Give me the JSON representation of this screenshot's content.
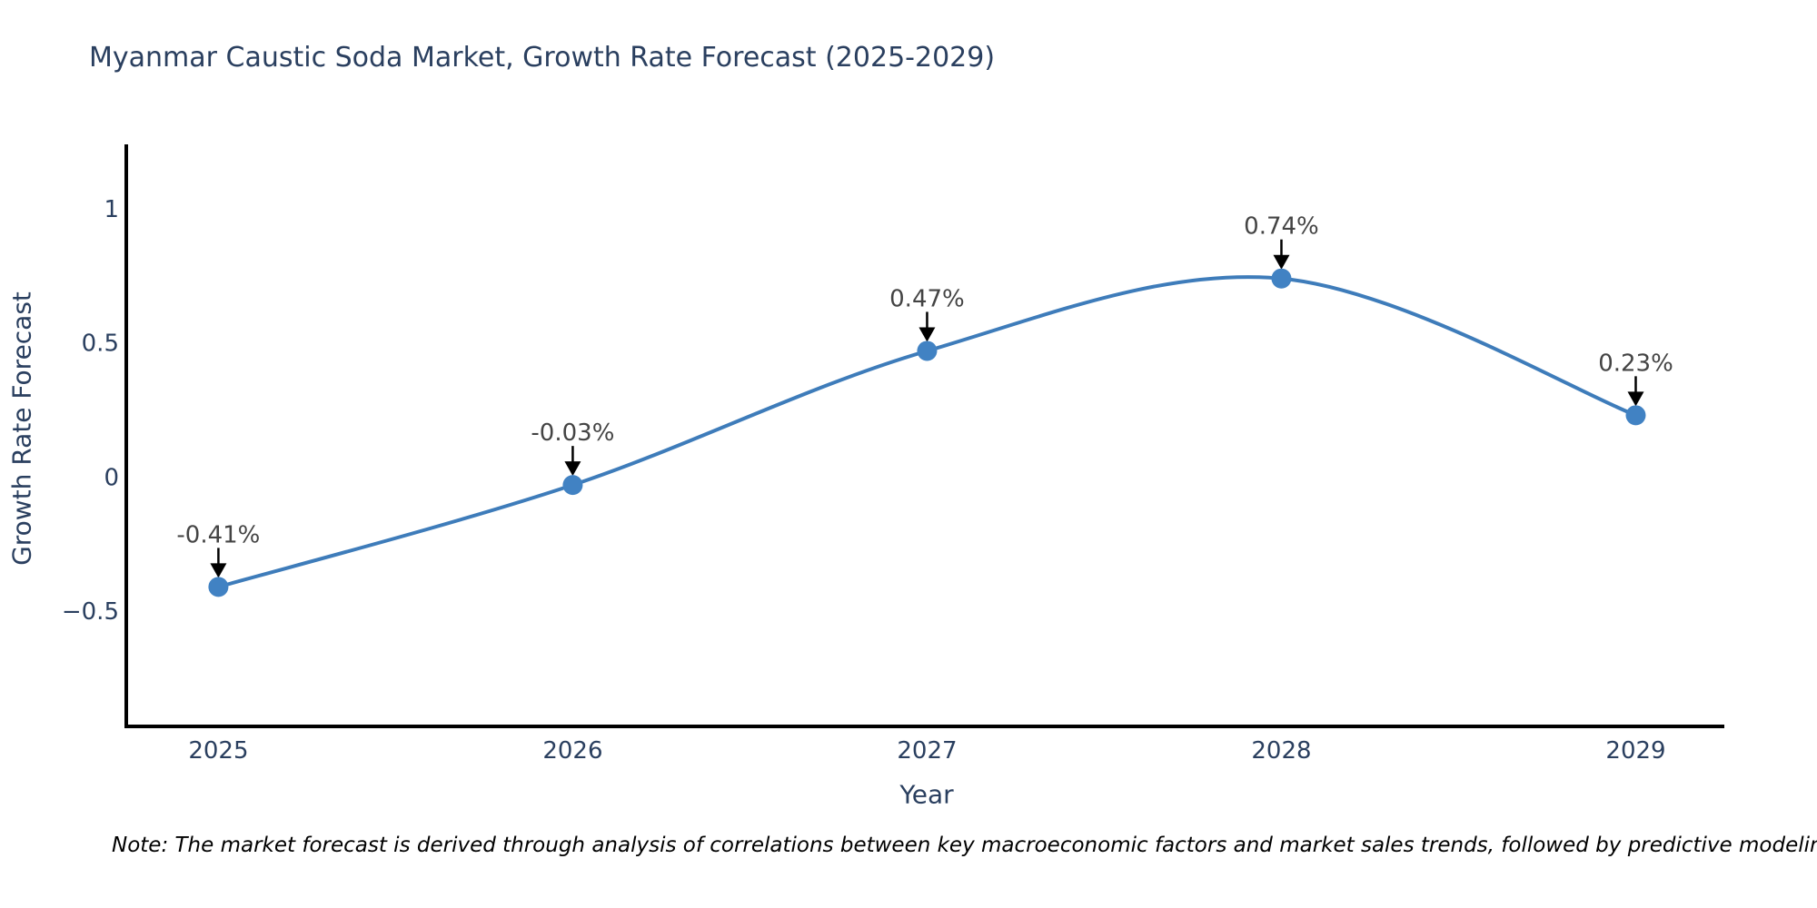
{
  "title": "Myanmar Caustic Soda Market, Growth Rate Forecast (2025-2029)",
  "note": "Note: The market forecast is derived through analysis of correlations between key macroeconomic factors and market sales trends, followed by predictive modeling to project future sa",
  "colors": {
    "line": "#3e7cba",
    "marker": "#4182c3",
    "axis": "#000000",
    "tick_label": "#2a3f5f",
    "title": "#2a3f5f",
    "annotation": "#444444",
    "arrow": "#000000",
    "background": "#ffffff"
  },
  "chart_data": {
    "type": "line",
    "title": "Myanmar Caustic Soda Market, Growth Rate Forecast (2025-2029)",
    "x": [
      2025,
      2026,
      2027,
      2028,
      2029
    ],
    "y": [
      -0.41,
      -0.03,
      0.47,
      0.74,
      0.23
    ],
    "point_labels": [
      "-0.41%",
      "-0.03%",
      "0.47%",
      "0.74%",
      "0.23%"
    ],
    "xlabel": "Year",
    "ylabel": "Growth Rate Forecast",
    "xticklabels": [
      "2025",
      "2026",
      "2027",
      "2028",
      "2029"
    ],
    "ytick_values": [
      -0.5,
      0,
      0.5,
      1
    ],
    "yticklabels": [
      "−0.5",
      "0",
      "0.5",
      "1"
    ],
    "x_range": [
      2024.74,
      2029.25
    ],
    "y_range": [
      -0.93,
      1.24
    ],
    "line_shape": "spline",
    "grid": false,
    "legend": false
  }
}
